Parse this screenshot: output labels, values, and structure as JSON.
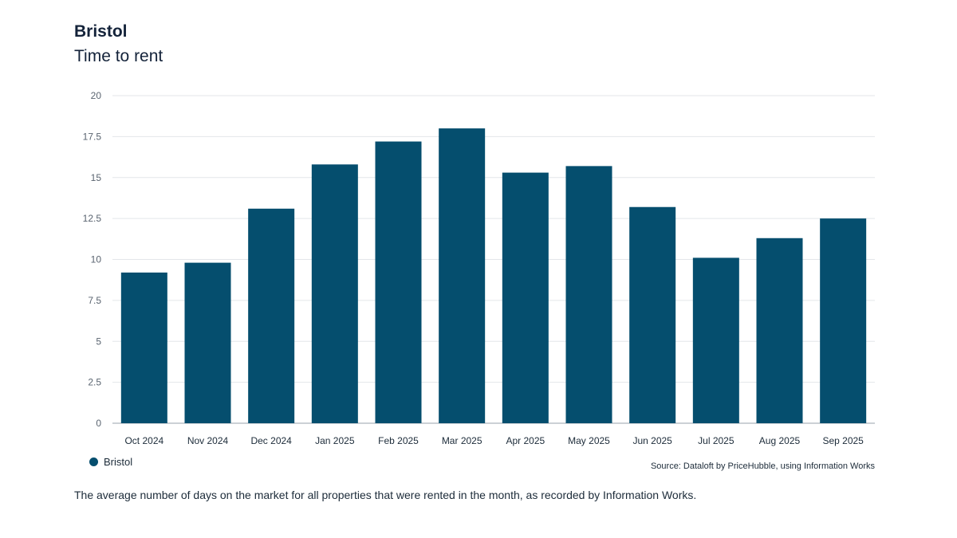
{
  "header": {
    "title": "Bristol",
    "subtitle": "Time to rent"
  },
  "chart_data": {
    "type": "bar",
    "categories": [
      "Oct 2024",
      "Nov 2024",
      "Dec 2024",
      "Jan 2025",
      "Feb 2025",
      "Mar 2025",
      "Apr 2025",
      "May 2025",
      "Jun 2025",
      "Jul 2025",
      "Aug 2025",
      "Sep 2025"
    ],
    "series": [
      {
        "name": "Bristol",
        "values": [
          9.2,
          9.8,
          13.1,
          15.8,
          17.2,
          18.0,
          15.3,
          15.7,
          13.2,
          10.1,
          11.3,
          12.5
        ],
        "color": "#054e6e"
      }
    ],
    "ylim": [
      0,
      20
    ],
    "yticks": [
      "0",
      "2.5",
      "5",
      "7.5",
      "10",
      "12.5",
      "15",
      "17.5",
      "20"
    ],
    "grid": true,
    "legend_position": "bottom-left"
  },
  "legend": {
    "label": "Bristol"
  },
  "source": "Source: Dataloft by PriceHubble, using Information Works",
  "footnote": "The average number of days on the market for all properties that were rented in the month, as recorded by Information Works."
}
